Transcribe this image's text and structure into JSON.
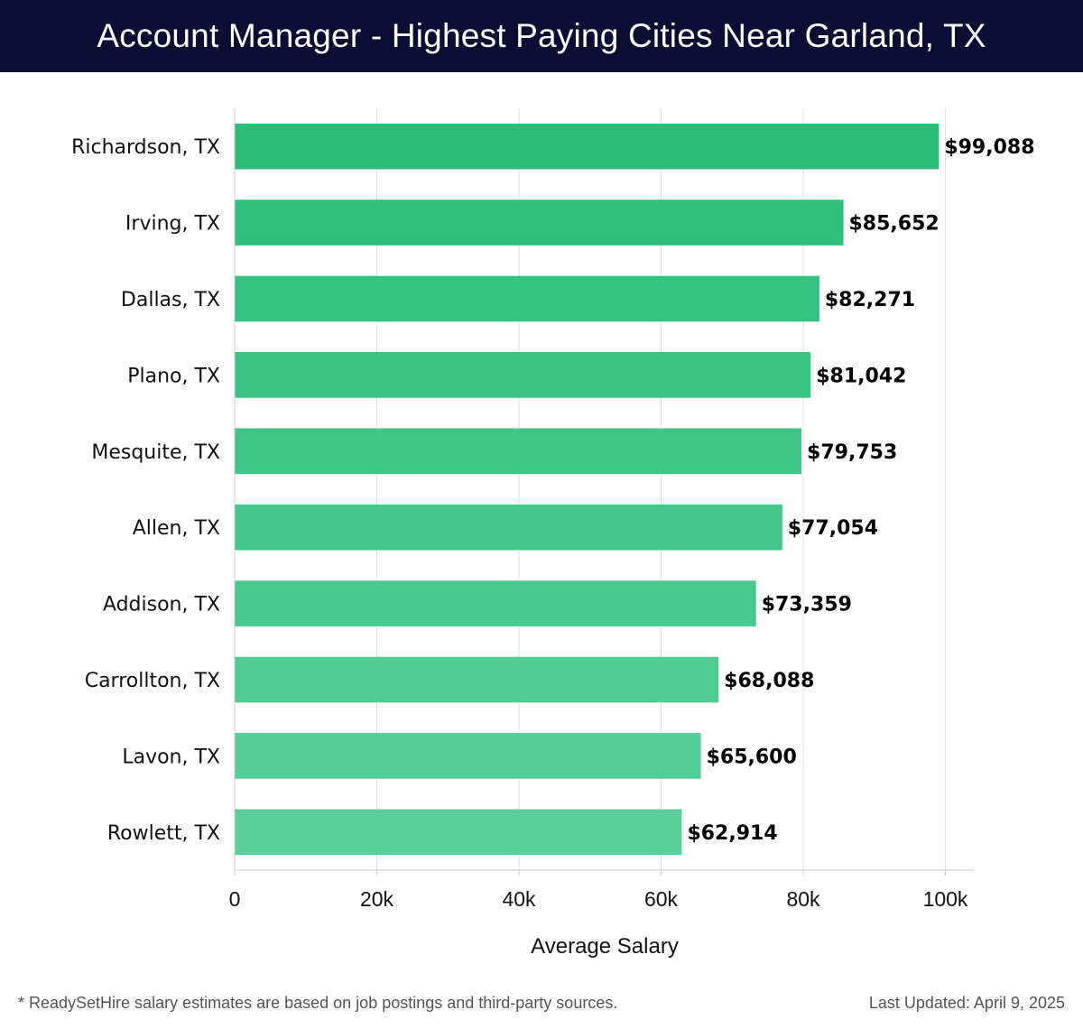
{
  "header": {
    "title": "Account Manager - Highest Paying Cities Near Garland, TX"
  },
  "chart_data": {
    "type": "bar",
    "orientation": "horizontal",
    "title": "Account Manager - Highest Paying Cities Near Garland, TX",
    "xlabel": "Average Salary",
    "ylabel": "",
    "xlim": [
      0,
      104000
    ],
    "grid": true,
    "ticks": [
      {
        "value": 0,
        "label": "0"
      },
      {
        "value": 20000,
        "label": "20k"
      },
      {
        "value": 40000,
        "label": "40k"
      },
      {
        "value": 60000,
        "label": "60k"
      },
      {
        "value": 80000,
        "label": "80k"
      },
      {
        "value": 100000,
        "label": "100k"
      }
    ],
    "categories": [
      "Richardson, TX",
      "Irving, TX",
      "Dallas, TX",
      "Plano, TX",
      "Mesquite, TX",
      "Allen, TX",
      "Addison, TX",
      "Carrollton, TX",
      "Lavon, TX",
      "Rowlett, TX"
    ],
    "values": [
      99088,
      85652,
      82271,
      81042,
      79753,
      77054,
      73359,
      68088,
      65600,
      62914
    ],
    "value_labels": [
      "$99,088",
      "$85,652",
      "$82,271",
      "$81,042",
      "$79,753",
      "$77,054",
      "$73,359",
      "$68,088",
      "$65,600",
      "$62,914"
    ],
    "colors": {
      "bar_top": "#2bbd78",
      "bar_bottom": "#5acf9a",
      "grid": "#e3e3e3",
      "axis": "#cccccc"
    }
  },
  "footer": {
    "note": "* ReadySetHire salary estimates are based on job postings and third-party sources.",
    "updated": "Last Updated: April 9, 2025"
  }
}
